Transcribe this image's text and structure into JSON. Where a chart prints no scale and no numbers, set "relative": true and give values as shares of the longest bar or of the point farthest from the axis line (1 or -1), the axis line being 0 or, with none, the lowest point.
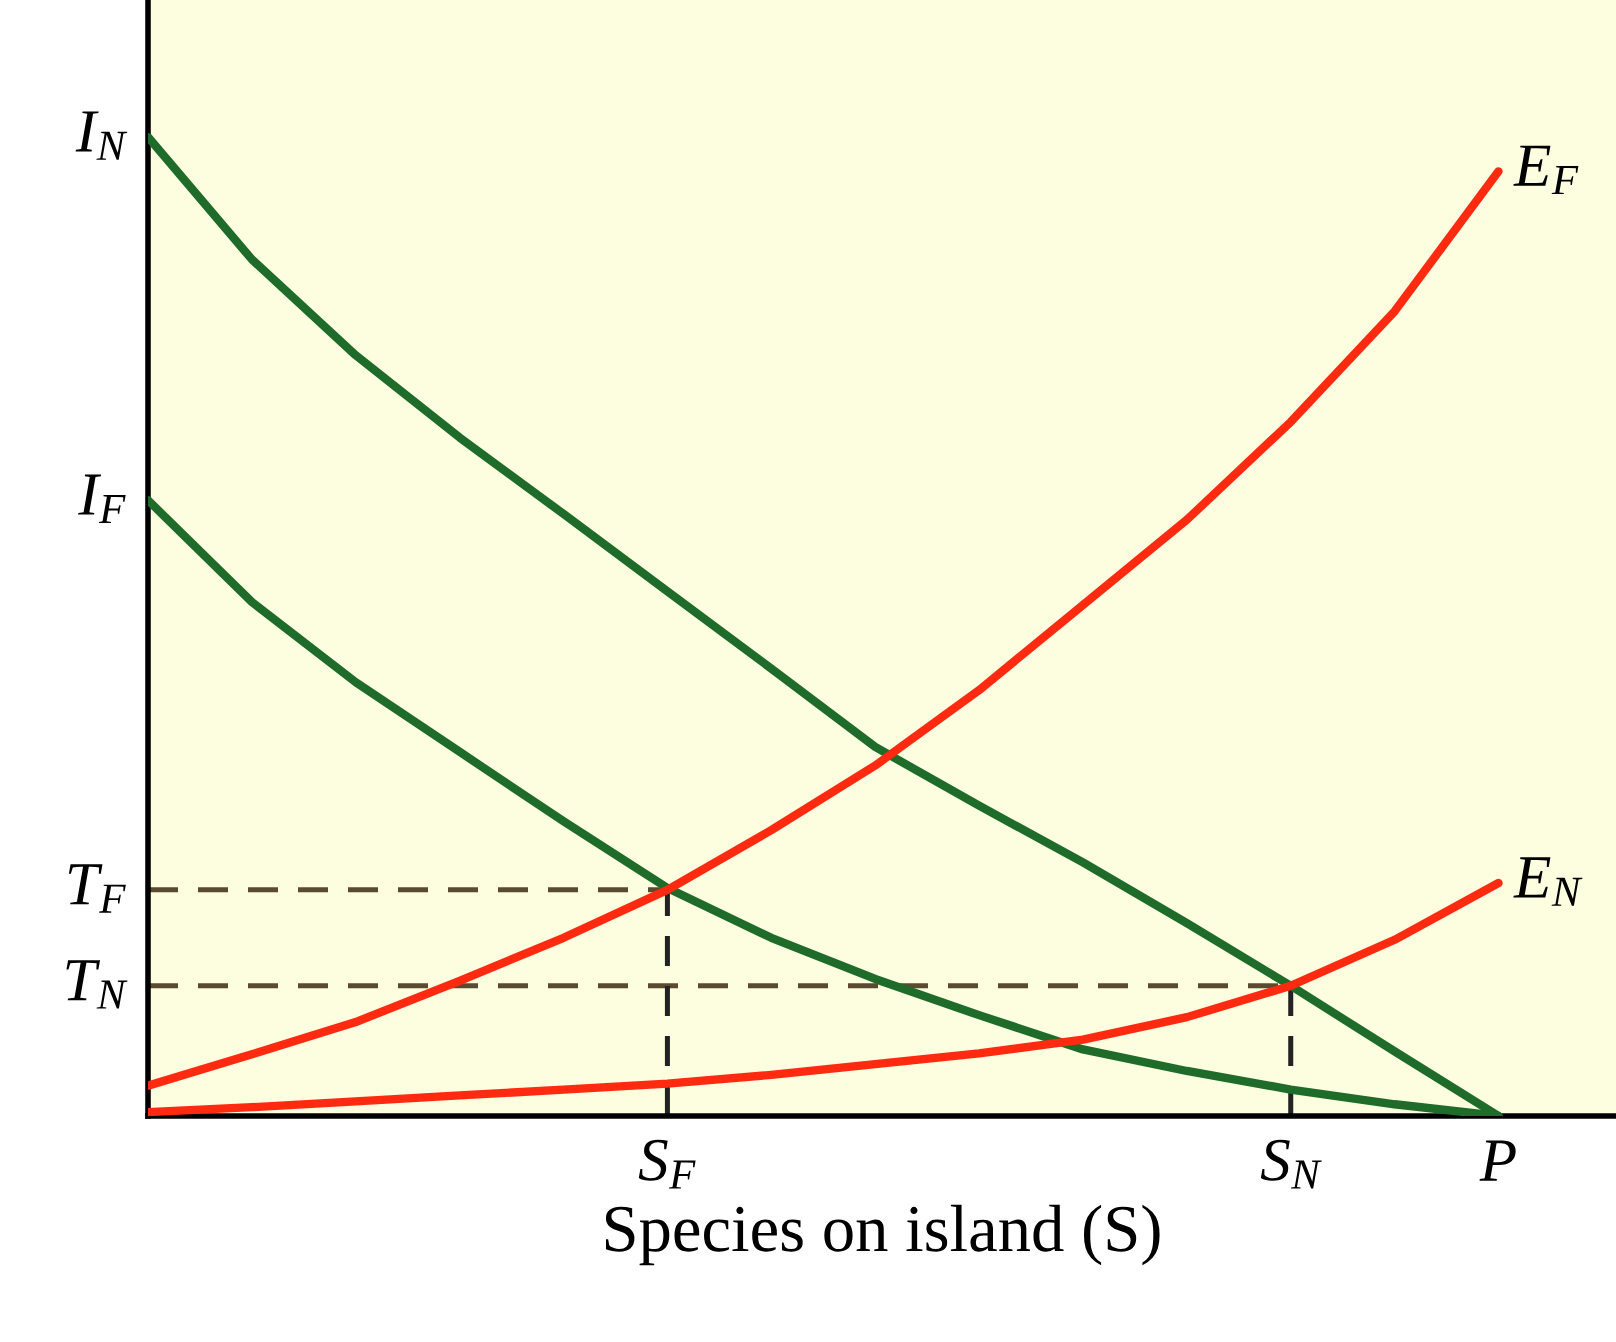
{
  "chart_data": {
    "type": "line",
    "relative": true,
    "xlabel": "Species on island (S)",
    "categories": [
      null,
      null,
      null,
      null,
      null,
      "S$_{F}$",
      null,
      null,
      null,
      null,
      null,
      "S$_{N}$",
      null,
      "P"
    ],
    "series": [
      {
        "name": "I$_{N}$",
        "color": "#1e6b2a",
        "values": [
          1.0,
          0.875,
          0.777,
          0.693,
          0.615,
          0.536,
          0.457,
          0.377,
          0.317,
          0.259,
          0.197,
          0.133,
          0.066,
          0
        ]
      },
      {
        "name": "I$_{F}$",
        "color": "#1e6b2a",
        "values": [
          0.629,
          0.525,
          0.443,
          0.372,
          0.301,
          0.233,
          0.182,
          0.14,
          0.103,
          0.068,
          0.046,
          0.027,
          0.012,
          0
        ]
      },
      {
        "name": "E$_{F}$",
        "color": "#ff2a10",
        "values": [
          0.031,
          0.063,
          0.096,
          0.138,
          0.182,
          0.231,
          0.292,
          0.358,
          0.435,
          0.522,
          0.609,
          0.709,
          0.822,
          0.965
        ]
      },
      {
        "name": "E$_{N}$",
        "color": "#ff2a10",
        "values": [
          0.004,
          0.009,
          0.015,
          0.021,
          0.027,
          0.033,
          0.042,
          0.053,
          0.064,
          0.078,
          0.101,
          0.133,
          0.18,
          0.238
        ]
      }
    ],
    "ref_lines": [
      {
        "axis": "y",
        "value": 0.231,
        "label": "T$_{F}$",
        "line_style": "dashed"
      },
      {
        "axis": "y",
        "value": 0.133,
        "label": "T$_{N}$",
        "line_style": "dashed"
      },
      {
        "axis": "x",
        "value": "S$_{F}$",
        "line_style": "dashed"
      },
      {
        "axis": "x",
        "value": "S$_{N}$",
        "line_style": "dashed"
      }
    ],
    "legend": false,
    "marker": "none",
    "line_style": "solid"
  }
}
